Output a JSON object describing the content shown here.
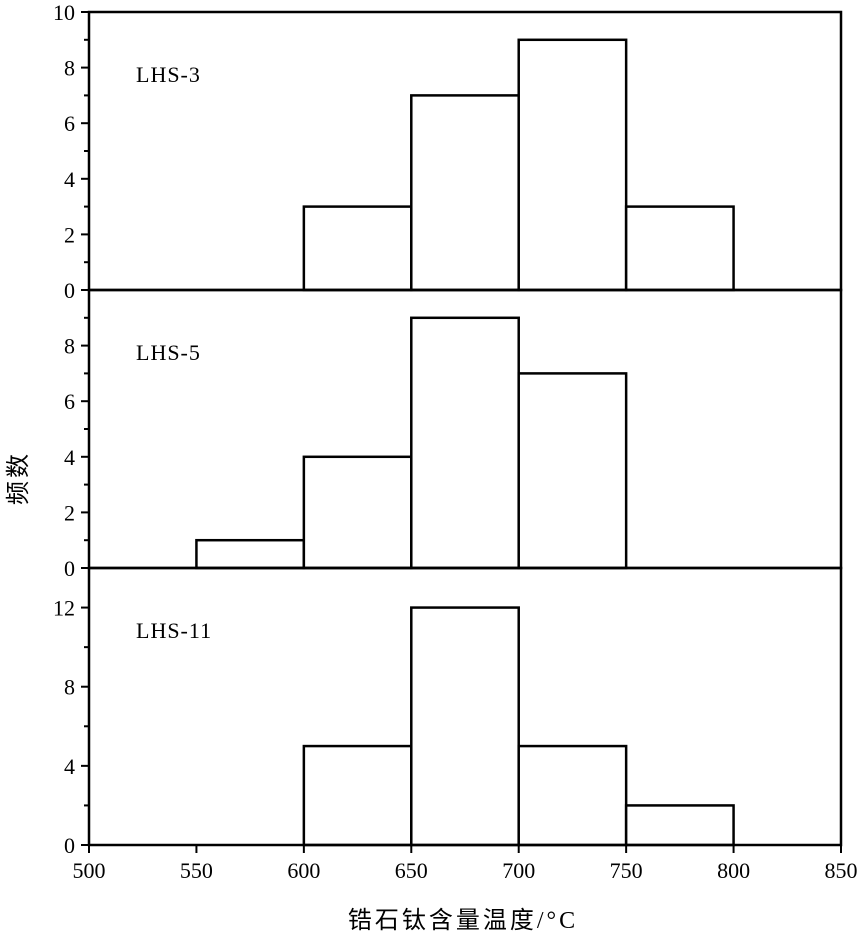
{
  "chart_data": {
    "type": "bar",
    "layout": "stacked-panels-shared-x",
    "xlabel": "锆石钛含量温度/°C",
    "ylabel": "频数",
    "xlim": [
      500,
      850
    ],
    "xticks": [
      500,
      550,
      600,
      650,
      700,
      750,
      800,
      850
    ],
    "bin_width": 50,
    "grid": false,
    "panels": [
      {
        "label": "LHS-3",
        "ylim": [
          0,
          10
        ],
        "yticks": [
          0,
          2,
          4,
          6,
          8,
          10
        ],
        "bins": [
          {
            "x0": 600,
            "x1": 650,
            "count": 3
          },
          {
            "x0": 650,
            "x1": 700,
            "count": 7
          },
          {
            "x0": 700,
            "x1": 750,
            "count": 9
          },
          {
            "x0": 750,
            "x1": 800,
            "count": 3
          }
        ]
      },
      {
        "label": "LHS-5",
        "ylim": [
          0,
          10
        ],
        "yticks": [
          0,
          2,
          4,
          6,
          8
        ],
        "bins": [
          {
            "x0": 550,
            "x1": 600,
            "count": 1
          },
          {
            "x0": 600,
            "x1": 650,
            "count": 4
          },
          {
            "x0": 650,
            "x1": 700,
            "count": 9
          },
          {
            "x0": 700,
            "x1": 750,
            "count": 7
          }
        ]
      },
      {
        "label": "LHS-11",
        "ylim": [
          0,
          14
        ],
        "yticks": [
          0,
          4,
          8,
          12
        ],
        "bins": [
          {
            "x0": 600,
            "x1": 650,
            "count": 5
          },
          {
            "x0": 650,
            "x1": 700,
            "count": 12
          },
          {
            "x0": 700,
            "x1": 750,
            "count": 5
          },
          {
            "x0": 750,
            "x1": 800,
            "count": 2
          }
        ]
      }
    ]
  }
}
